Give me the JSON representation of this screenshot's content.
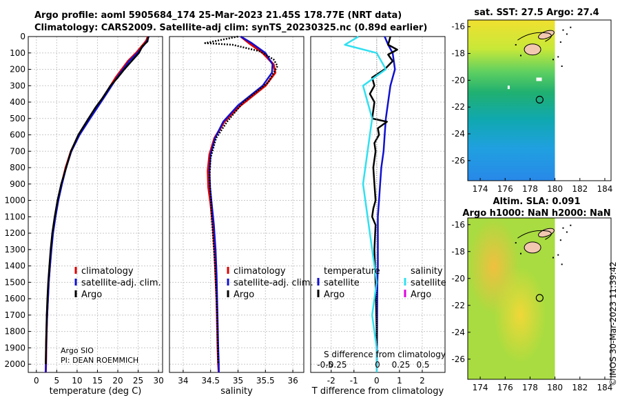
{
  "header": {
    "line1": "Argo profile: aoml 5905684_174 25-Mar-2023 21.45S 178.77E (NRT data)",
    "line2": "Climatology: CARS2009. Satellite-adj clim: synTS_20230325.nc (0.89d earlier)"
  },
  "colors": {
    "climatology": "#e00000",
    "satellite": "#1010d0",
    "argo": "#000000",
    "satellite_salinity": "#30e0f0",
    "argo_salinity": "#e000e0"
  },
  "chart_data": [
    {
      "type": "line",
      "name": "temperature-profile",
      "xlabel": "temperature (deg C)",
      "ylabel": "",
      "xlim": [
        -2,
        31
      ],
      "ylim": [
        0,
        2050
      ],
      "xticks": [
        0,
        5,
        10,
        15,
        20,
        25,
        30
      ],
      "yticks": [
        0,
        100,
        200,
        300,
        400,
        500,
        600,
        700,
        800,
        900,
        1000,
        1100,
        1200,
        1300,
        1400,
        1500,
        1600,
        1700,
        1800,
        1900,
        2000
      ],
      "legend": [
        "climatology",
        "satellite-adj. clim.",
        "Argo"
      ],
      "annotation": [
        "Argo SIO",
        "PI: DEAN ROEMMICH"
      ],
      "series": [
        {
          "name": "climatology",
          "x": [
            27.4,
            27.0,
            26.2,
            24.5,
            22.5,
            19.5,
            17.0,
            13.0,
            10.5,
            8.5,
            7.2,
            6.2,
            5.3,
            4.6,
            4.0,
            3.6,
            3.3,
            3.0,
            2.8,
            2.6,
            2.5,
            2.4,
            2.35,
            2.3
          ],
          "y": [
            0,
            25,
            50,
            100,
            150,
            250,
            350,
            500,
            600,
            700,
            800,
            900,
            1000,
            1100,
            1200,
            1300,
            1400,
            1500,
            1600,
            1700,
            1800,
            1900,
            2000,
            2050
          ]
        },
        {
          "name": "satellite",
          "x": [
            27.6,
            27.2,
            26.5,
            24.8,
            22.8,
            19.8,
            17.2,
            13.2,
            10.6,
            8.6,
            7.3,
            6.3,
            5.4,
            4.7,
            4.1,
            3.7,
            3.35,
            3.05,
            2.85,
            2.65,
            2.5,
            2.4,
            2.35,
            2.3
          ],
          "y": [
            0,
            25,
            50,
            100,
            150,
            250,
            350,
            500,
            600,
            700,
            800,
            900,
            1000,
            1100,
            1200,
            1300,
            1400,
            1500,
            1600,
            1700,
            1800,
            1900,
            2000,
            2050
          ]
        },
        {
          "name": "argo",
          "x": [
            27.5,
            27.3,
            26.0,
            25.2,
            23.4,
            21.6,
            20.0,
            18.2,
            16.1,
            14.6,
            12.8,
            10.3,
            8.5,
            7.3,
            6.1,
            5.2,
            4.5,
            3.9,
            3.5,
            3.2,
            2.9,
            2.7,
            2.55,
            2.4,
            2.3
          ],
          "y": [
            0,
            30,
            60,
            100,
            150,
            200,
            250,
            300,
            380,
            430,
            500,
            600,
            700,
            800,
            900,
            1000,
            1100,
            1200,
            1300,
            1400,
            1500,
            1600,
            1700,
            1850,
            2000
          ]
        }
      ]
    },
    {
      "type": "line",
      "name": "salinity-profile",
      "xlabel": "salinity",
      "xlim": [
        33.75,
        36.2
      ],
      "ylim": [
        0,
        2050
      ],
      "xticks": [
        34,
        34.5,
        35,
        35.5,
        36
      ],
      "legend": [
        "climatology",
        "satellite-adj. clim.",
        "Argo"
      ],
      "series": [
        {
          "name": "climatology",
          "x": [
            35.05,
            35.2,
            35.45,
            35.65,
            35.68,
            35.5,
            35.05,
            34.75,
            34.57,
            34.48,
            34.45,
            34.46,
            34.5,
            34.54,
            34.57,
            34.59,
            34.61,
            34.62,
            34.63,
            34.64,
            34.65
          ],
          "y": [
            0,
            40,
            100,
            170,
            220,
            300,
            420,
            520,
            620,
            720,
            820,
            920,
            1020,
            1150,
            1300,
            1450,
            1600,
            1750,
            1900,
            2000,
            2050
          ]
        },
        {
          "name": "satellite",
          "x": [
            35.05,
            35.25,
            35.5,
            35.63,
            35.62,
            35.45,
            35.0,
            34.73,
            34.58,
            34.5,
            34.48,
            34.49,
            34.52,
            34.56,
            34.59,
            34.61,
            34.62,
            34.63,
            34.64,
            34.65,
            34.65
          ],
          "y": [
            0,
            40,
            100,
            170,
            220,
            300,
            420,
            520,
            620,
            720,
            820,
            920,
            1020,
            1150,
            1300,
            1450,
            1600,
            1750,
            1900,
            2000,
            2050
          ]
        },
        {
          "name": "argo",
          "x": [
            35.0,
            34.4,
            34.9,
            35.4,
            35.65,
            35.72,
            35.55,
            35.1,
            34.8,
            34.6,
            34.5,
            34.48,
            34.5,
            34.52,
            34.55,
            34.58,
            34.6,
            34.62,
            34.63,
            34.64
          ],
          "y": [
            0,
            40,
            50,
            90,
            140,
            180,
            280,
            400,
            520,
            620,
            740,
            860,
            960,
            1100,
            1250,
            1400,
            1550,
            1700,
            1850,
            2000
          ]
        }
      ]
    },
    {
      "type": "line",
      "name": "difference-profile",
      "xlabel": "T difference from climatology",
      "xlim": [
        -2.9,
        3.0
      ],
      "ylim": [
        0,
        2050
      ],
      "xticks": [
        -2,
        -1,
        0,
        1,
        2
      ],
      "secondary_xlabel": "S difference from climatology",
      "secondary_xticks": [
        "-0.5",
        "-0.25",
        "0",
        "0.25",
        "0.5"
      ],
      "legend_groups": {
        "temperature": [
          "satellite",
          "Argo"
        ],
        "salinity": [
          "satellite",
          "Argo"
        ]
      },
      "series": [
        {
          "name": "temperature-satellite",
          "x": [
            0.35,
            0.5,
            0.7,
            0.8,
            0.6,
            0.5,
            0.4,
            0.35,
            0.3,
            0.2,
            0.15,
            0.1,
            0.05,
            0.05,
            0.05,
            0.05,
            0.03,
            0.02,
            0.01,
            0.0
          ],
          "y": [
            0,
            50,
            100,
            200,
            300,
            400,
            500,
            600,
            700,
            800,
            900,
            1000,
            1100,
            1200,
            1300,
            1400,
            1500,
            1700,
            1900,
            2050
          ]
        },
        {
          "name": "temperature-argo",
          "x": [
            0.6,
            0.5,
            0.9,
            0.5,
            0.7,
            0.35,
            -0.2,
            -0.1,
            -0.3,
            -0.1,
            -0.15,
            -0.2,
            0.45,
            0.05,
            0.1,
            -0.1,
            -0.05,
            -0.15,
            -0.1,
            -0.05,
            -0.15,
            -0.2,
            -0.05,
            -0.1,
            -0.05,
            0.0,
            0.0
          ],
          "y": [
            0,
            50,
            80,
            110,
            150,
            200,
            250,
            300,
            350,
            400,
            450,
            500,
            520,
            560,
            600,
            650,
            700,
            800,
            900,
            1000,
            1050,
            1100,
            1150,
            1300,
            1500,
            1800,
            2000
          ]
        },
        {
          "name": "salinity-satellite",
          "x": [
            -0.2,
            -0.35,
            0.0,
            0.1,
            -0.15,
            -0.1,
            -0.05,
            -0.1,
            -0.15,
            -0.1,
            -0.05,
            0.0,
            -0.05,
            0.0,
            0.0
          ],
          "y": [
            0,
            50,
            100,
            200,
            300,
            400,
            500,
            700,
            900,
            1100,
            1300,
            1500,
            1700,
            1900,
            2050
          ]
        }
      ]
    },
    {
      "type": "heatmap",
      "name": "sst-map",
      "title": "sat. SST: 27.5 Argo: 27.4",
      "xlim": [
        173,
        184.5
      ],
      "ylim": [
        -27.5,
        -15.5
      ],
      "xticks": [
        174,
        176,
        178,
        180,
        182,
        184
      ],
      "yticks": [
        -16,
        -18,
        -20,
        -22,
        -24,
        -26
      ],
      "marker": {
        "lon": 178.77,
        "lat": -21.45
      }
    },
    {
      "type": "heatmap",
      "name": "sla-map",
      "title": "Altim. SLA: 0.091",
      "subtitle": "Argo h1000: NaN h2000: NaN",
      "xlim": [
        173,
        184.5
      ],
      "ylim": [
        -27.5,
        -15.5
      ],
      "xticks": [
        174,
        176,
        178,
        180,
        182,
        184
      ],
      "yticks": [
        -16,
        -18,
        -20,
        -22,
        -24,
        -26
      ],
      "marker": {
        "lon": 178.77,
        "lat": -21.45
      }
    }
  ],
  "legend_labels": {
    "climatology": "climatology",
    "satellite_adj": "satellite-adj. clim.",
    "argo": "Argo",
    "temperature_head": "temperature",
    "salinity_head": "salinity",
    "satellite": "satellite"
  },
  "credit": "©IMOS 30-Mar-2023 11:39:42"
}
